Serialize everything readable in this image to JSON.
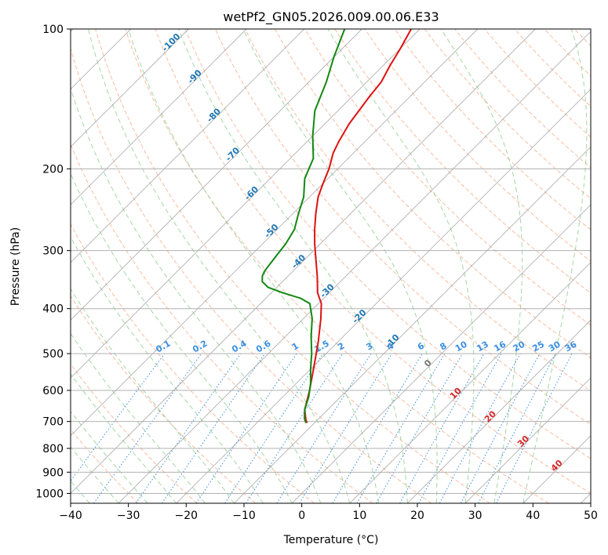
{
  "chart_data": {
    "type": "skew-t",
    "title": "wetPf2_GN05.2026.009.00.06.E33",
    "xlabel": "Temperature (°C)",
    "ylabel": "Pressure (hPa)",
    "xlim": [
      -40,
      50
    ],
    "ylim": [
      1050,
      100
    ],
    "x_ticks": [
      -40,
      -30,
      -20,
      -10,
      0,
      10,
      20,
      30,
      40,
      50
    ],
    "y_ticks": [
      100,
      200,
      300,
      400,
      500,
      600,
      700,
      800,
      900,
      1000
    ],
    "colors": {
      "temperature": "#dd1111",
      "dewpoint": "#118811",
      "dry_adiabat": "#f4a582",
      "moist_adiabat": "#8fcc8f",
      "mixing_ratio": "#3a8fe0",
      "isotherm": "#9e9e9e",
      "isotherm_label": "#1f77b4",
      "warm_label": "#d62728"
    },
    "series": [
      {
        "name": "Temperature",
        "points": [
          {
            "p": 705,
            "t": -11.3
          },
          {
            "p": 695,
            "t": -12.0
          },
          {
            "p": 660,
            "t": -14.0
          },
          {
            "p": 600,
            "t": -16.5
          },
          {
            "p": 540,
            "t": -19.5
          },
          {
            "p": 470,
            "t": -23.5
          },
          {
            "p": 420,
            "t": -27.0
          },
          {
            "p": 390,
            "t": -29.5
          },
          {
            "p": 370,
            "t": -32.0
          },
          {
            "p": 340,
            "t": -35.0
          },
          {
            "p": 310,
            "t": -38.5
          },
          {
            "p": 290,
            "t": -41.0
          },
          {
            "p": 270,
            "t": -43.5
          },
          {
            "p": 250,
            "t": -46.0
          },
          {
            "p": 230,
            "t": -48.5
          },
          {
            "p": 215,
            "t": -50.0
          },
          {
            "p": 200,
            "t": -51.5
          },
          {
            "p": 185,
            "t": -53.5
          },
          {
            "p": 175,
            "t": -54.5
          },
          {
            "p": 160,
            "t": -55.8
          },
          {
            "p": 140,
            "t": -57.0
          },
          {
            "p": 130,
            "t": -57.5
          },
          {
            "p": 120,
            "t": -58.8
          },
          {
            "p": 110,
            "t": -60.0
          },
          {
            "p": 100,
            "t": -61.5
          }
        ]
      },
      {
        "name": "Dewpoint",
        "points": [
          {
            "p": 705,
            "t": -11.5
          },
          {
            "p": 690,
            "t": -12.5
          },
          {
            "p": 660,
            "t": -14.0
          },
          {
            "p": 620,
            "t": -15.5
          },
          {
            "p": 580,
            "t": -17.5
          },
          {
            "p": 540,
            "t": -20.0
          },
          {
            "p": 500,
            "t": -22.5
          },
          {
            "p": 460,
            "t": -25.5
          },
          {
            "p": 420,
            "t": -28.5
          },
          {
            "p": 390,
            "t": -31.5
          },
          {
            "p": 380,
            "t": -34.0
          },
          {
            "p": 370,
            "t": -38.0
          },
          {
            "p": 360,
            "t": -41.5
          },
          {
            "p": 350,
            "t": -43.5
          },
          {
            "p": 340,
            "t": -44.5
          },
          {
            "p": 330,
            "t": -45.0
          },
          {
            "p": 310,
            "t": -45.5
          },
          {
            "p": 290,
            "t": -46.0
          },
          {
            "p": 270,
            "t": -47.0
          },
          {
            "p": 250,
            "t": -49.0
          },
          {
            "p": 230,
            "t": -51.0
          },
          {
            "p": 210,
            "t": -54.0
          },
          {
            "p": 190,
            "t": -56.0
          },
          {
            "p": 170,
            "t": -60.0
          },
          {
            "p": 150,
            "t": -64.0
          },
          {
            "p": 130,
            "t": -67.0
          },
          {
            "p": 115,
            "t": -70.0
          },
          {
            "p": 100,
            "t": -73.0
          }
        ]
      }
    ],
    "isotherm_labels": [
      {
        "t": -100,
        "p": 108
      },
      {
        "t": -90,
        "p": 128
      },
      {
        "t": -80,
        "p": 155
      },
      {
        "t": -70,
        "p": 188
      },
      {
        "t": -60,
        "p": 228
      },
      {
        "t": -50,
        "p": 275
      },
      {
        "t": -40,
        "p": 320
      },
      {
        "t": -30,
        "p": 370
      },
      {
        "t": -20,
        "p": 420
      },
      {
        "t": -10,
        "p": 475
      }
    ],
    "warm_isotherm_labels": [
      {
        "t": 0,
        "p": 530,
        "color": "gray"
      },
      {
        "t": 10,
        "p": 615,
        "color": "red"
      },
      {
        "t": 20,
        "p": 690,
        "color": "red"
      },
      {
        "t": 30,
        "p": 780,
        "color": "red"
      },
      {
        "t": 40,
        "p": 880,
        "color": "red"
      }
    ],
    "mixing_ratio_values": [
      0.1,
      0.2,
      0.4,
      0.6,
      1,
      1.5,
      2,
      3,
      4,
      6,
      8,
      10,
      13,
      16,
      20,
      25,
      30,
      36
    ],
    "mixing_ratio_labels": [
      "0.1",
      "0.2",
      "0.4",
      "0.6",
      "1",
      "1.5",
      "2",
      "3",
      "4",
      "6",
      "8",
      "10",
      "13",
      "16",
      "20",
      "25",
      "30",
      "36"
    ],
    "mixing_ratio_label_pressure": 500
  }
}
